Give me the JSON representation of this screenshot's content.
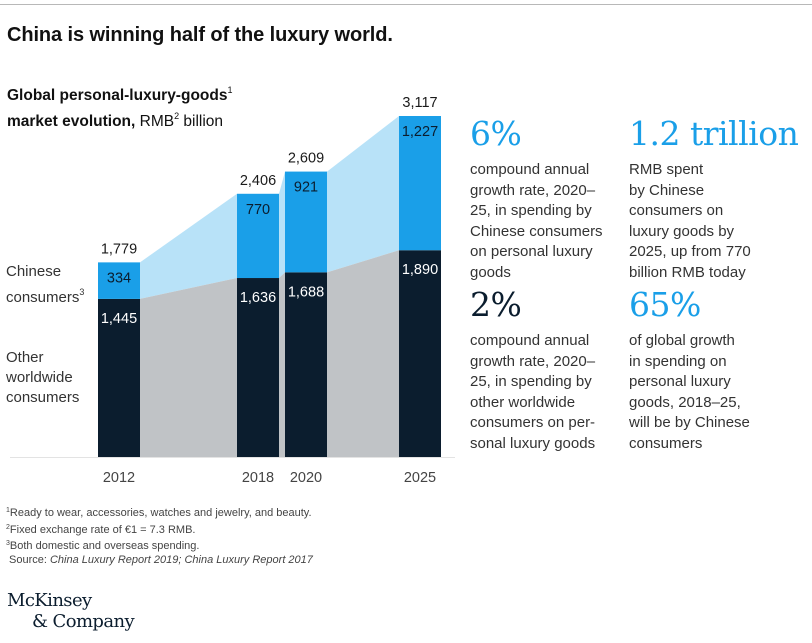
{
  "title": "China is winning half of the luxury world.",
  "subtitle": {
    "bold_line1": "Global personal-luxury-goods",
    "sup1": "1",
    "bold_line2": "market evolution,",
    "unit": " RMB",
    "sup2": "2",
    "unit_rest": " billion"
  },
  "side_labels": {
    "chinese": "Chinese",
    "chinese2": "consumers",
    "chinese_sup": "3",
    "other1": "Other",
    "other2": "worldwide",
    "other3": "consumers"
  },
  "chart_data": {
    "type": "bar",
    "stacked": true,
    "title": "Global personal-luxury-goods market evolution, RMB billion",
    "xlabel": "",
    "ylabel": "RMB billion",
    "categories": [
      "2012",
      "2018",
      "2020",
      "2025"
    ],
    "series": [
      {
        "name": "Other worldwide consumers",
        "values": [
          1445,
          1636,
          1688,
          1890
        ],
        "color": "#0b1d2e"
      },
      {
        "name": "Chinese consumers",
        "values": [
          334,
          770,
          921,
          1227
        ],
        "color": "#1a9fe8"
      }
    ],
    "totals": [
      1779,
      2406,
      2609,
      3117
    ],
    "total_labels": [
      "1,779",
      "2,406",
      "2,609",
      "3,117"
    ],
    "other_labels": [
      "1,445",
      "1,636",
      "1,688",
      "1,890"
    ],
    "chinese_labels": [
      "334",
      "770",
      "921",
      "1,227"
    ],
    "ylim": [
      0,
      3117
    ],
    "grid": false,
    "area_colors": {
      "chinese": "#b8e2f8",
      "other": "#c0c3c6"
    },
    "baseline_color": "#e3e3e3"
  },
  "stats": [
    {
      "value": "6%",
      "color": "blue",
      "text": [
        "compound annual",
        "growth rate, 2020–",
        "25, in spending by",
        "Chinese consumers",
        "on personal luxury",
        "goods"
      ]
    },
    {
      "value": "1.2 trillion",
      "color": "blue",
      "text": [
        "RMB spent",
        "by Chinese",
        "consumers on",
        "luxury goods by",
        "2025, up from 770",
        "billion RMB today"
      ]
    },
    {
      "value": "2%",
      "color": "navy",
      "text": [
        "compound annual",
        "growth rate, 2020–",
        "25, in spending by",
        "other worldwide",
        "consumers on per-",
        "sonal luxury goods"
      ]
    },
    {
      "value": "65%",
      "color": "blue",
      "text": [
        "of global growth",
        "in spending on",
        "personal luxury",
        "goods, 2018–25,",
        "will be by Chinese",
        "consumers"
      ]
    }
  ],
  "footnotes": {
    "f1_sup": "1",
    "f1": "Ready to wear, accessories, watches and jewelry, and beauty.",
    "f2_sup": "2",
    "f2": "Fixed exchange rate of €1 = 7.3 RMB.",
    "f3_sup": "3",
    "f3": "Both domestic and overseas spending.",
    "source_prefix": "Source: ",
    "source_italic": "China Luxury Report 2019; China Luxury Report 2017"
  },
  "logo": {
    "line1": "McKinsey",
    "line2": "& Company"
  }
}
